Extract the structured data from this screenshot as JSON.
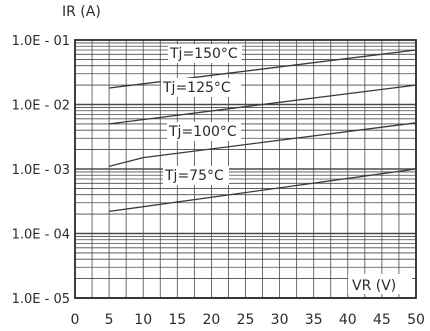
{
  "chart_data": {
    "type": "line",
    "title": "",
    "ylabel": "IR (A)",
    "xlabel": "VR (V)",
    "y_scale": "log",
    "x_ticks": [
      "0",
      "5",
      "10",
      "15",
      "20",
      "25",
      "30",
      "35",
      "40",
      "45",
      "50"
    ],
    "y_ticks": [
      "1.0E - 01",
      "1.0E - 02",
      "1.0E - 03",
      "1.0E - 04",
      "1.0E - 05"
    ],
    "xlim": [
      0,
      50
    ],
    "ylim": [
      1e-05,
      0.1
    ],
    "grid": true,
    "legend": "none",
    "series": [
      {
        "name": "Tj=150°C",
        "x": [
          5,
          50
        ],
        "y": [
          0.018,
          0.07
        ]
      },
      {
        "name": "Tj=125°C",
        "x": [
          5,
          50
        ],
        "y": [
          0.005,
          0.02
        ]
      },
      {
        "name": "Tj=100°C",
        "x": [
          5,
          10,
          50
        ],
        "y": [
          0.0011,
          0.0015,
          0.0052
        ]
      },
      {
        "name": "Tj=75°C",
        "x": [
          5,
          50
        ],
        "y": [
          0.00022,
          0.001
        ]
      }
    ],
    "line_color": "#3a3a3a",
    "grid_color": "#4a4a4a"
  }
}
